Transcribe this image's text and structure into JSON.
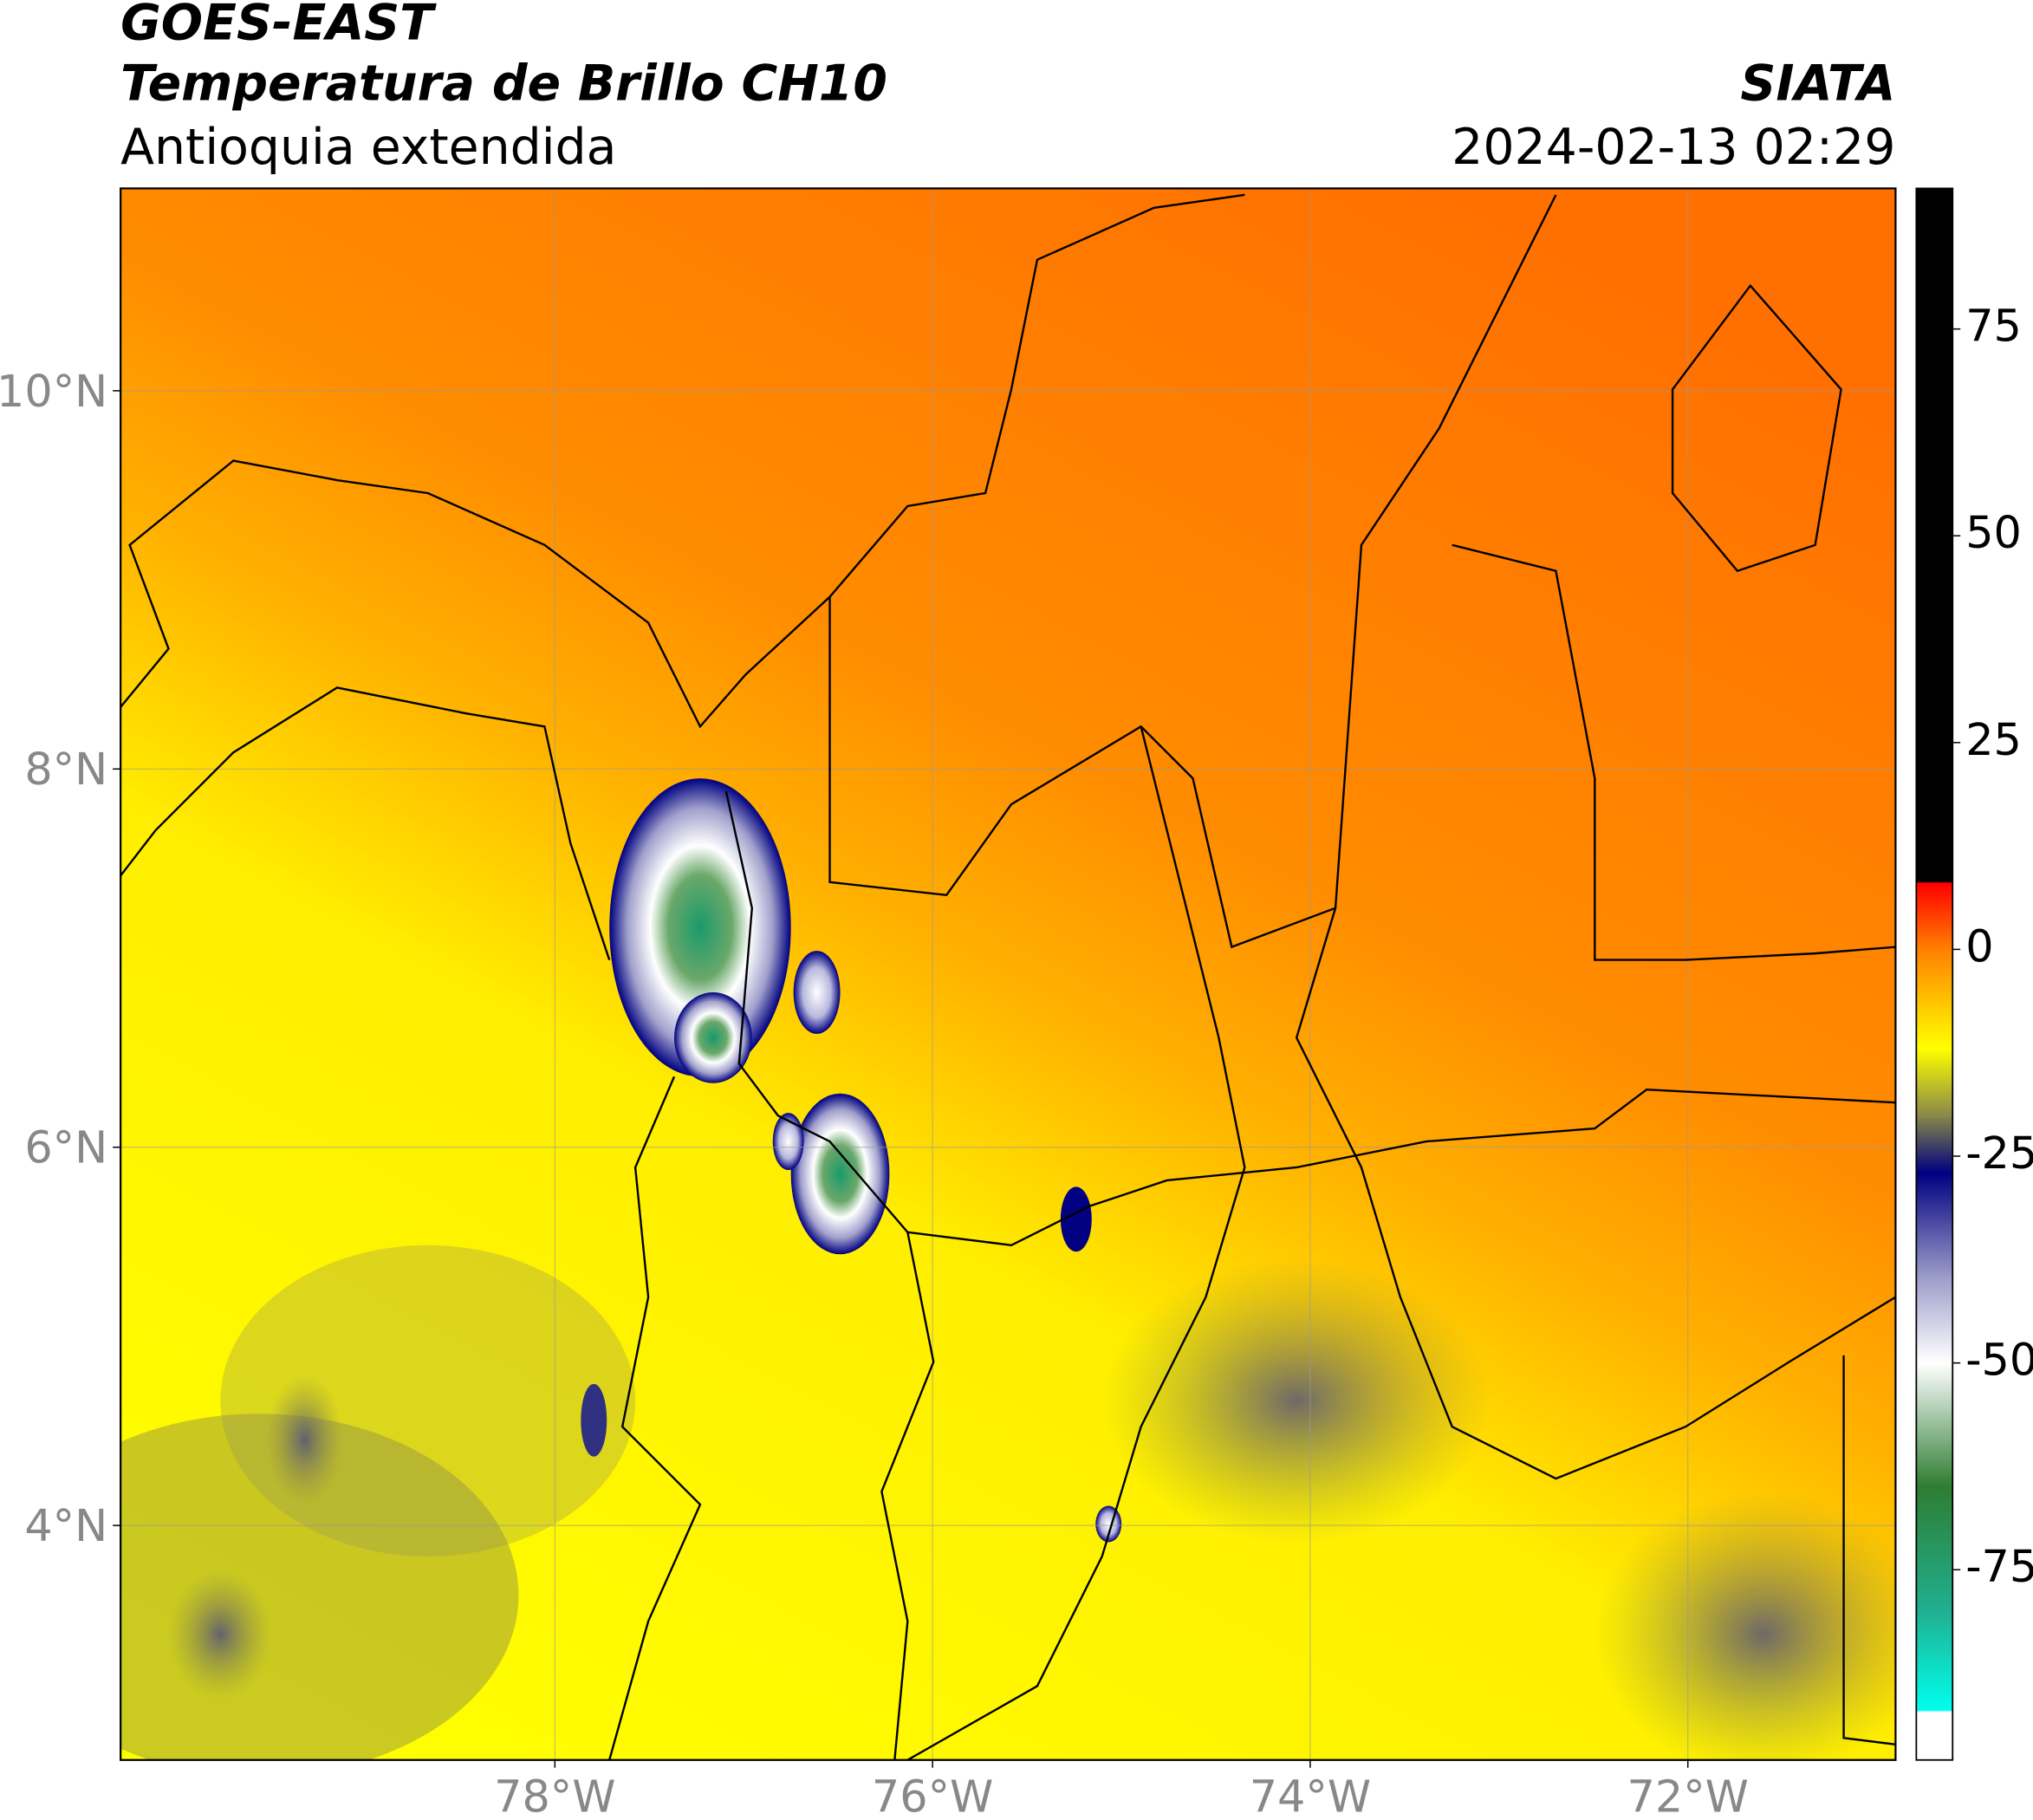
{
  "header": {
    "line1": "GOES-EAST",
    "line2": "Temperatura de Brillo CH10",
    "line3": "Antioquia extendida",
    "source": "SIATA",
    "datetime": "2024-02-13 02:29"
  },
  "map": {
    "xlim": [
      -80.3,
      -70.9
    ],
    "ylim": [
      2.76,
      11.07
    ],
    "grid": true,
    "xticks": [
      {
        "value": -78,
        "label": "78°W"
      },
      {
        "value": -76,
        "label": "76°W"
      },
      {
        "value": -74,
        "label": "74°W"
      },
      {
        "value": -72,
        "label": "72°W"
      }
    ],
    "yticks": [
      {
        "value": 10,
        "label": "10°N"
      },
      {
        "value": 8,
        "label": "8°N"
      },
      {
        "value": 6,
        "label": "6°N"
      },
      {
        "value": 4,
        "label": "4°N"
      }
    ]
  },
  "colorbar": {
    "lim": [
      -98,
      92
    ],
    "ticks": [
      75,
      50,
      25,
      0,
      -25,
      -50,
      -75
    ],
    "colors": [
      [
        92,
        "#000000"
      ],
      [
        8.2,
        "#000000"
      ],
      [
        8,
        "#ff0000"
      ],
      [
        0,
        "#ff8000"
      ],
      [
        -12,
        "#ffff00"
      ],
      [
        -20,
        "#8a8a48"
      ],
      [
        -27,
        "#000080"
      ],
      [
        -40,
        "#a0a0cc"
      ],
      [
        -50,
        "#ffffff"
      ],
      [
        -65,
        "#2e7d32"
      ],
      [
        -80,
        "#20b090"
      ],
      [
        -92,
        "#00ffee"
      ],
      [
        -92.2,
        "#ffffff"
      ],
      [
        -98,
        "#ffffff"
      ]
    ]
  }
}
